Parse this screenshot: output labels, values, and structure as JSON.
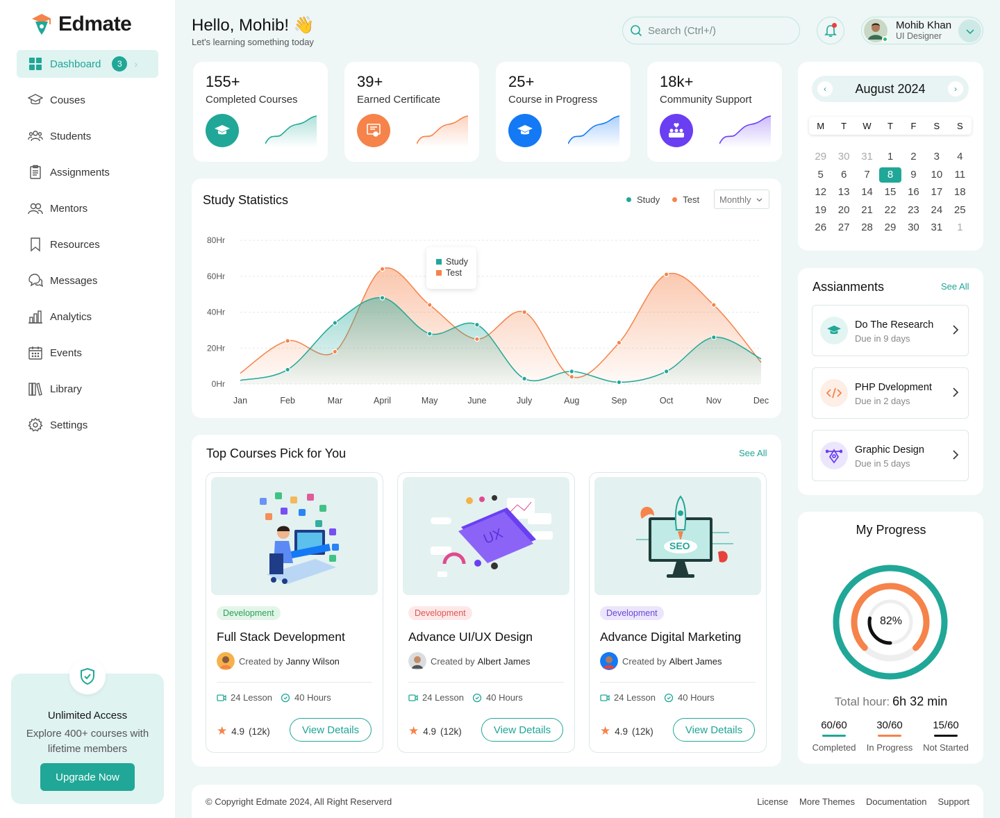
{
  "brand": {
    "name": "Edmate"
  },
  "sidebar": {
    "items": [
      {
        "label": "Dashboard",
        "icon": "dashboard-icon",
        "badge": "3",
        "active": true
      },
      {
        "label": "Couses",
        "icon": "graduation-cap-icon"
      },
      {
        "label": "Students",
        "icon": "users-icon"
      },
      {
        "label": "Assignments",
        "icon": "clipboard-icon"
      },
      {
        "label": "Mentors",
        "icon": "user-group-icon"
      },
      {
        "label": "Resources",
        "icon": "bookmark-icon"
      },
      {
        "label": "Messages",
        "icon": "chat-icon"
      },
      {
        "label": "Analytics",
        "icon": "bar-chart-icon"
      },
      {
        "label": "Events",
        "icon": "calendar-icon"
      },
      {
        "label": "Library",
        "icon": "books-icon"
      },
      {
        "label": "Settings",
        "icon": "gear-icon"
      }
    ],
    "promo": {
      "title": "Unlimited Access",
      "desc": "Explore 400+ courses with lifetime members",
      "button": "Upgrade Now"
    }
  },
  "header": {
    "greeting": "Hello, Mohib! 👋",
    "subtitle": "Let's learning something today",
    "search_placeholder": "Search (Ctrl+/)",
    "user": {
      "name": "Mohib Khan",
      "role": "UI Designer"
    }
  },
  "stats": [
    {
      "value": "155+",
      "label": "Completed Courses",
      "color": "#20a797",
      "icon": "graduation-cap-icon"
    },
    {
      "value": "39+",
      "label": "Earned Certificate",
      "color": "#f5834a",
      "icon": "certificate-icon"
    },
    {
      "value": "25+",
      "label": "Course in Progress",
      "color": "#1479f5",
      "icon": "graduation-cap-icon"
    },
    {
      "value": "18k+",
      "label": "Community Support",
      "color": "#6a3ff2",
      "icon": "community-icon"
    }
  ],
  "study": {
    "title": "Study Statistics",
    "legend": [
      "Study",
      "Test"
    ],
    "period": "Monthly",
    "tooltip": [
      "Study",
      "Test"
    ]
  },
  "chart_data": {
    "type": "area",
    "title": "Study Statistics",
    "categories": [
      "Jan",
      "Feb",
      "Mar",
      "April",
      "May",
      "June",
      "July",
      "Aug",
      "Sep",
      "Oct",
      "Nov",
      "Dec"
    ],
    "y_ticks": [
      "0Hr",
      "20Hr",
      "40Hr",
      "60Hr",
      "80Hr"
    ],
    "ylim": [
      0,
      80
    ],
    "series": [
      {
        "name": "Study",
        "color": "#20a797",
        "values": [
          2,
          8,
          34,
          48,
          28,
          33,
          3,
          7,
          1,
          7,
          26,
          14
        ]
      },
      {
        "name": "Test",
        "color": "#f5834a",
        "values": [
          6,
          24,
          18,
          64,
          44,
          25,
          40,
          4,
          23,
          61,
          44,
          12
        ]
      }
    ]
  },
  "courses": {
    "title": "Top Courses Pick for You",
    "see_all": "See All",
    "items": [
      {
        "tag": "Development",
        "tag_bg": "#e3f5e8",
        "tag_fg": "#2aa05a",
        "title": "Full Stack Development",
        "by": "Created by",
        "author": "Janny Wilson",
        "lessons": "24 Lesson",
        "hours": "40 Hours",
        "rating": "4.9",
        "reviews": "(12k)",
        "button": "View Details"
      },
      {
        "tag": "Development",
        "tag_bg": "#fde8e8",
        "tag_fg": "#e05555",
        "title": "Advance UI/UX Design",
        "by": "Created by",
        "author": "Albert James",
        "lessons": "24 Lesson",
        "hours": "40 Hours",
        "rating": "4.9",
        "reviews": "(12k)",
        "button": "View Details"
      },
      {
        "tag": "Development",
        "tag_bg": "#ebe6fb",
        "tag_fg": "#6a46d8",
        "title": "Advance Digital Marketing",
        "by": "Created by",
        "author": "Albert James",
        "lessons": "24 Lesson",
        "hours": "40 Hours",
        "rating": "4.9",
        "reviews": "(12k)",
        "button": "View Details"
      }
    ]
  },
  "calendar": {
    "month": "August 2024",
    "dow": [
      "M",
      "T",
      "W",
      "T",
      "F",
      "S",
      "S"
    ],
    "days": [
      {
        "d": "29",
        "m": true
      },
      {
        "d": "30",
        "m": true
      },
      {
        "d": "31",
        "m": true
      },
      {
        "d": "1"
      },
      {
        "d": "2"
      },
      {
        "d": "3"
      },
      {
        "d": "4"
      },
      {
        "d": "5"
      },
      {
        "d": "6"
      },
      {
        "d": "7"
      },
      {
        "d": "8",
        "sel": true
      },
      {
        "d": "9"
      },
      {
        "d": "10"
      },
      {
        "d": "11"
      },
      {
        "d": "12"
      },
      {
        "d": "13"
      },
      {
        "d": "14"
      },
      {
        "d": "15"
      },
      {
        "d": "16"
      },
      {
        "d": "17"
      },
      {
        "d": "18"
      },
      {
        "d": "19"
      },
      {
        "d": "20"
      },
      {
        "d": "21"
      },
      {
        "d": "22"
      },
      {
        "d": "23"
      },
      {
        "d": "24"
      },
      {
        "d": "25"
      },
      {
        "d": "26"
      },
      {
        "d": "27"
      },
      {
        "d": "28"
      },
      {
        "d": "29"
      },
      {
        "d": "30"
      },
      {
        "d": "31"
      },
      {
        "d": "1",
        "m": true
      }
    ]
  },
  "assignments": {
    "title": "Assianments",
    "see_all": "See All",
    "items": [
      {
        "title": "Do The Research",
        "due": "Due in 9 days",
        "color": "#20a797",
        "bg": "#e3f5f3",
        "icon": "graduation-cap-icon"
      },
      {
        "title": "PHP Dvelopment",
        "due": "Due in 2 days",
        "color": "#f5834a",
        "bg": "#fdeee6",
        "icon": "code-icon"
      },
      {
        "title": "Graphic Design",
        "due": "Due in 5 days",
        "color": "#6a3ff2",
        "bg": "#ece6fd",
        "icon": "design-icon"
      }
    ]
  },
  "progress": {
    "title": "My Progress",
    "percent": "82%",
    "percent_value": 0.82,
    "total_label": "Total hour:",
    "total_value": "6h 32 min",
    "stats": [
      {
        "value": "60/60",
        "label": "Completed",
        "color": "#20a797"
      },
      {
        "value": "30/60",
        "label": "In Progress",
        "color": "#f5834a"
      },
      {
        "value": "15/60",
        "label": "Not Started",
        "color": "#111111"
      }
    ]
  },
  "footer": {
    "copyright": "© Copyright Edmate 2024, All Right Reserverd",
    "links": [
      "License",
      "More Themes",
      "Documentation",
      "Support"
    ]
  }
}
